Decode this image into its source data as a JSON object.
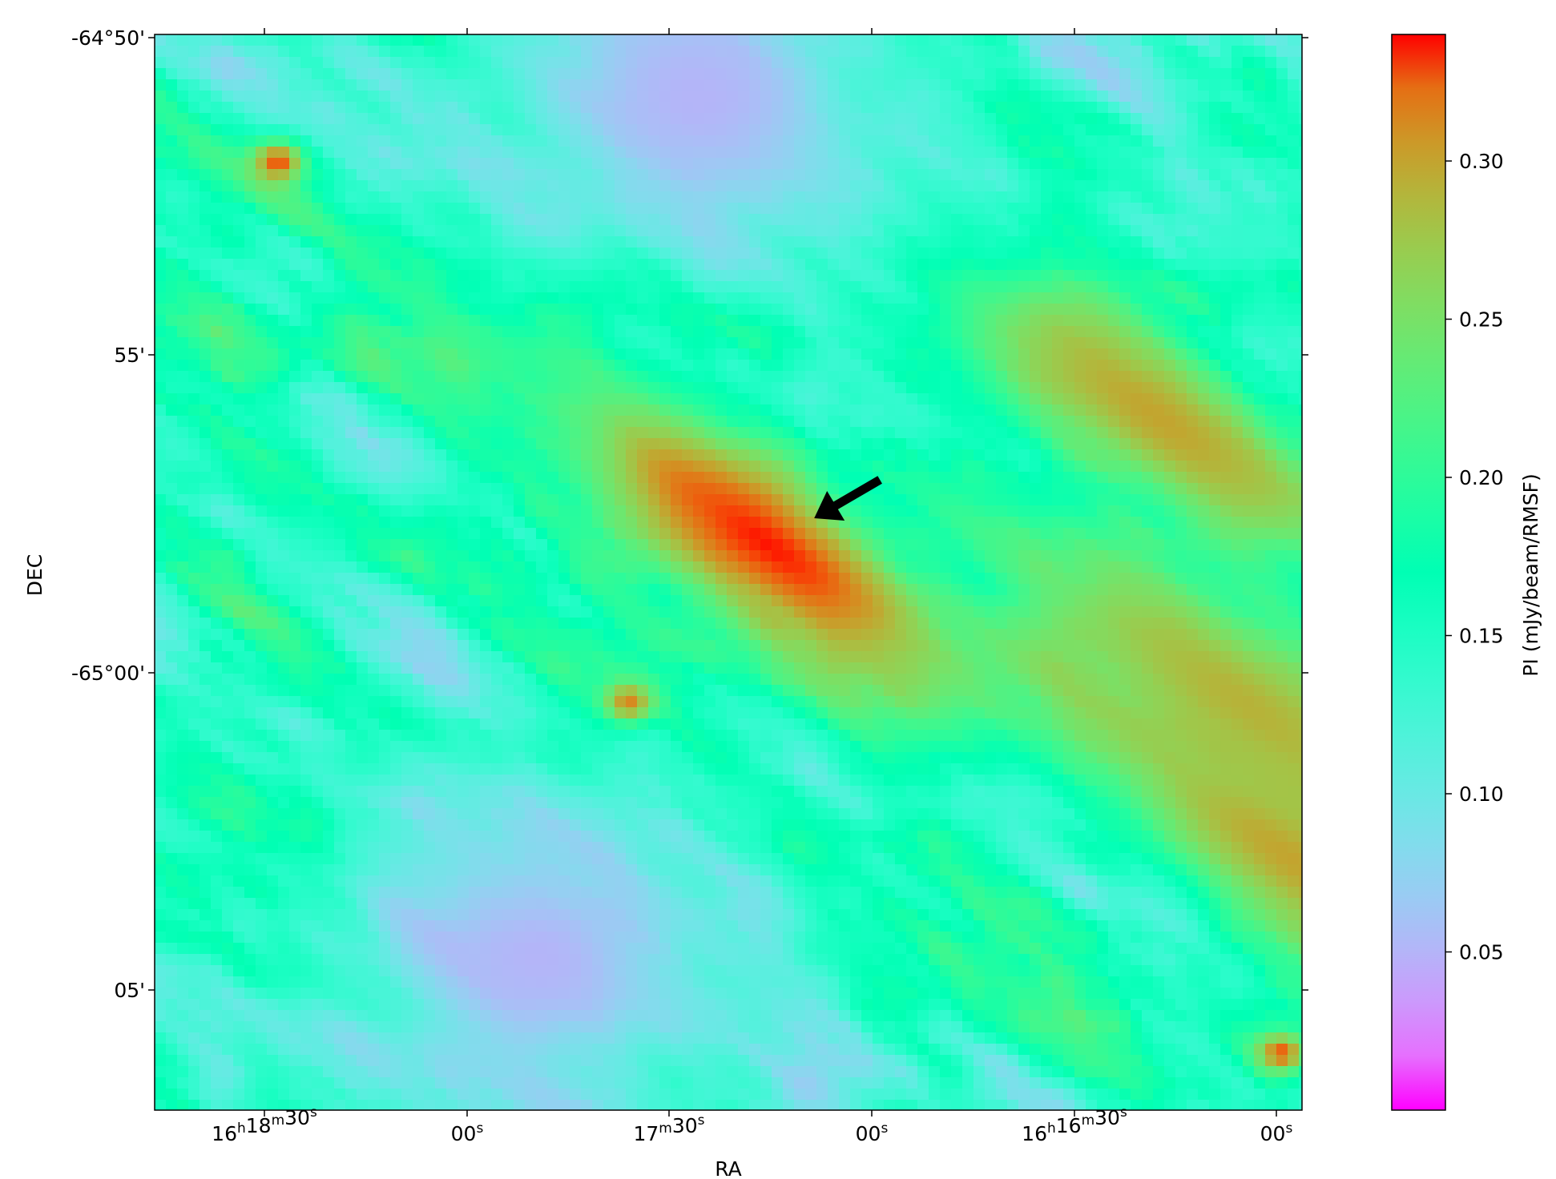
{
  "chart_data": {
    "type": "heatmap",
    "title": "",
    "xlabel": "RA",
    "ylabel": "DEC",
    "x_ticks": [
      {
        "h": "16",
        "m": "18",
        "s": "30"
      },
      {
        "h": "",
        "m": "",
        "s": "00"
      },
      {
        "h": "",
        "m": "17",
        "s": "30"
      },
      {
        "h": "",
        "m": "",
        "s": "00"
      },
      {
        "h": "16",
        "m": "16",
        "s": "30"
      },
      {
        "h": "",
        "m": "",
        "s": "00"
      }
    ],
    "y_ticks": [
      "-64°50'",
      "55'",
      "-65°00'",
      "05'"
    ],
    "colorbar": {
      "label": "PI (mJy/beam/RMSF)",
      "colormap": "rainbow",
      "range": [
        0.0,
        0.34
      ],
      "ticks": [
        "0.30",
        "0.25",
        "0.20",
        "0.15",
        "0.10",
        "0.05"
      ],
      "tick_values": [
        0.3,
        0.25,
        0.2,
        0.15,
        0.1,
        0.05
      ]
    },
    "background_level": 0.15,
    "features": [
      {
        "kind": "extended-ridge",
        "peak": 0.34,
        "center_ra": "16h17m15s",
        "center_dec": "-64°58'"
      },
      {
        "kind": "compact-source",
        "peak": 0.34,
        "center_ra": "16h18m26s",
        "center_dec": "-64°52'"
      },
      {
        "kind": "compact-source",
        "peak": 0.34,
        "center_ra": "16h17m35s",
        "center_dec": "-65°00.5'"
      },
      {
        "kind": "compact-source",
        "peak": 0.33,
        "center_ra": "16h16m00s",
        "center_dec": "-65°06'"
      },
      {
        "kind": "extended-ridge",
        "peak": 0.3,
        "center_ra": "16h16m18s",
        "center_dec": "-64°56'"
      },
      {
        "kind": "extended-ridge",
        "peak": 0.29,
        "center_ra": "16h16m05s",
        "center_dec": "-65°00.5'"
      },
      {
        "kind": "extended-ridge",
        "peak": 0.3,
        "center_ra": "16h15m58s",
        "center_dec": "-65°03'"
      },
      {
        "kind": "low-emission-patch",
        "peak": 0.05,
        "center_ra": "16h17m25s",
        "center_dec": "-64°51'"
      },
      {
        "kind": "low-emission-patch",
        "peak": 0.05,
        "center_ra": "16h17m48s",
        "center_dec": "-65°04.5'"
      }
    ],
    "annotations": [
      {
        "kind": "arrow",
        "color": "black",
        "points_to": "extended-ridge",
        "target_ra": "16h17m08s",
        "target_dec": "-64°57.6'"
      }
    ]
  }
}
